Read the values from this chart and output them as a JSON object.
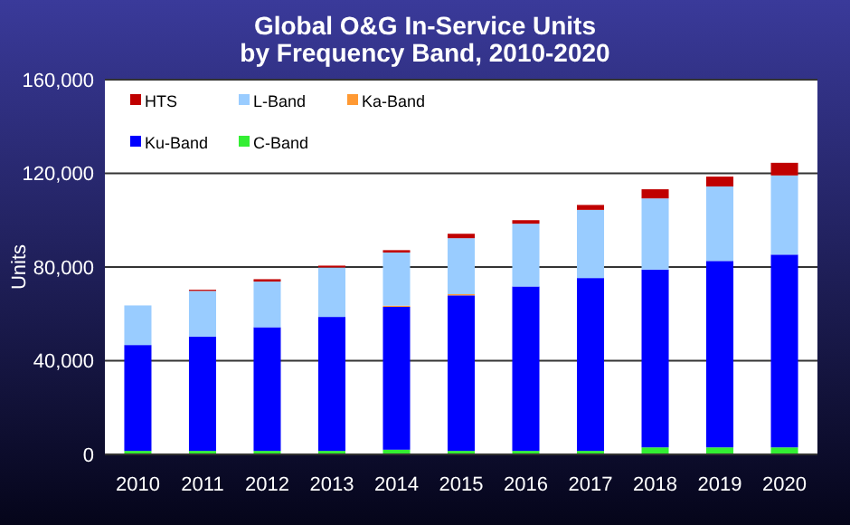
{
  "chart_data": {
    "type": "bar",
    "title": "Global O&G In-Service Units\nby Frequency Band, 2010-2020",
    "ylabel": "Units",
    "categories": [
      "2010",
      "2011",
      "2012",
      "2013",
      "2014",
      "2015",
      "2016",
      "2017",
      "2018",
      "2019",
      "2020"
    ],
    "stacked": true,
    "series": [
      {
        "name": "C-Band",
        "color": "#33ee33",
        "values": [
          1500,
          1500,
          1500,
          1500,
          2000,
          1500,
          1500,
          1500,
          3000,
          3000,
          3000
        ]
      },
      {
        "name": "Ku-Band",
        "color": "#0000ff",
        "values": [
          45200,
          48800,
          52800,
          57200,
          61000,
          66400,
          70200,
          73800,
          75900,
          79600,
          82300
        ]
      },
      {
        "name": "Ka-Band",
        "color": "#ff9933",
        "values": [
          null,
          null,
          null,
          null,
          500,
          500,
          null,
          null,
          null,
          null,
          null
        ]
      },
      {
        "name": "L-Band",
        "color": "#99ccff",
        "values": [
          16900,
          19500,
          19500,
          21100,
          22700,
          23900,
          26800,
          29100,
          30400,
          31800,
          33800
        ]
      },
      {
        "name": "HTS",
        "color": "#c00000",
        "values": [
          0,
          500,
          1000,
          800,
          1000,
          1900,
          1500,
          2100,
          3900,
          4200,
          5400
        ]
      }
    ],
    "ylim": [
      0,
      160000
    ],
    "yticks": [
      {
        "value": 0,
        "label": "0"
      },
      {
        "value": 40000,
        "label": "40,000"
      },
      {
        "value": 80000,
        "label": "80,000"
      },
      {
        "value": 120000,
        "label": "120,000"
      },
      {
        "value": 160000,
        "label": "160,000"
      }
    ],
    "grid": "y",
    "legend": "top left"
  }
}
